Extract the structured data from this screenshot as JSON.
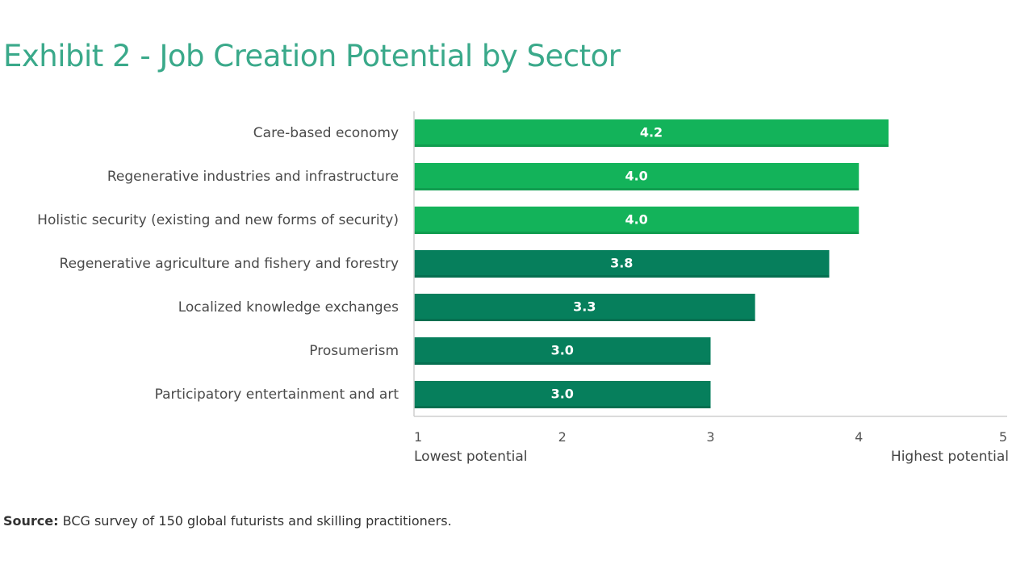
{
  "title": "Exhibit 2 - Job Creation Potential by Sector",
  "source": {
    "label": "Source:",
    "text": " BCG survey of 150 global futurists and skilling practitioners."
  },
  "colors": {
    "title": "#3aa98a",
    "bar_light": "#13b35a",
    "bar_dark": "#067f5c"
  },
  "chart_data": {
    "type": "bar",
    "orientation": "horizontal",
    "categories": [
      "Care-based economy",
      "Regenerative industries and infrastructure",
      "Holistic security (existing and new forms of security)",
      "Regenerative agriculture and fishery and forestry",
      "Localized knowledge exchanges",
      "Prosumerism",
      "Participatory entertainment and art"
    ],
    "values": [
      4.2,
      4.0,
      4.0,
      3.8,
      3.3,
      3.0,
      3.0
    ],
    "value_labels": [
      "4.2",
      "4.0",
      "4.0",
      "3.8",
      "3.3",
      "3.0",
      "3.0"
    ],
    "highlight": [
      true,
      true,
      true,
      false,
      false,
      false,
      false
    ],
    "xlim": [
      1,
      5
    ],
    "xticks": [
      "1",
      "2",
      "3",
      "4",
      "5"
    ],
    "x_low_label": "Lowest potential",
    "x_high_label": "Highest potential",
    "grid": false
  }
}
